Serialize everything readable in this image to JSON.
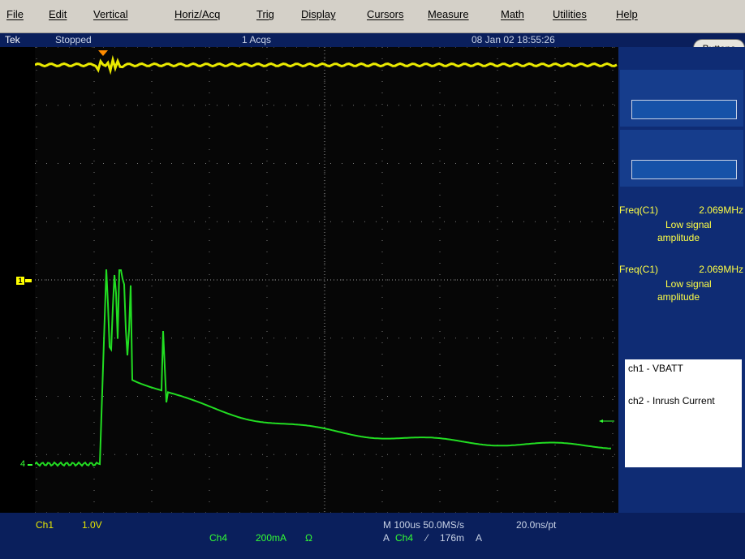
{
  "menu": [
    "File",
    "Edit",
    "Vertical",
    "Horiz/Acq",
    "Trig",
    "Display",
    "Cursors",
    "Measure",
    "Math",
    "Utilities",
    "Help"
  ],
  "status": {
    "brand": "Tek",
    "state": "Stopped",
    "acqs": "1 Acqs",
    "datetime": "08 Jan 02 18:55:26"
  },
  "buttons_label": "Buttons",
  "measurements": [
    {
      "name": "Freq(C1)",
      "value": "2.069MHz",
      "note1": "Low signal",
      "note2": "amplitude"
    },
    {
      "name": "Freq(C1)",
      "value": "2.069MHz",
      "note1": "Low signal",
      "note2": "amplitude"
    }
  ],
  "legend": {
    "line1": "ch1 - VBATT",
    "line2": "ch2 - Inrush Current"
  },
  "markers": {
    "ch1": "1",
    "ch4": "4"
  },
  "bottom": {
    "ch1": "Ch1",
    "ch1_scale": "1.0V",
    "ch4": "Ch4",
    "ch4_scale": "200mA",
    "ch4_unit": "Ω",
    "timebase": "M 100us 50.0MS/s",
    "points": "20.0ns/pt",
    "trigger_a": "A",
    "trigger_src": "Ch4",
    "trigger_slope": "⁄",
    "trigger_level": "176m",
    "trigger_unit": "A"
  },
  "colors": {
    "ch1": "#e8e800",
    "ch4": "#22dd22",
    "background": "#060606",
    "trigger_marker": "#ff8c00"
  }
}
